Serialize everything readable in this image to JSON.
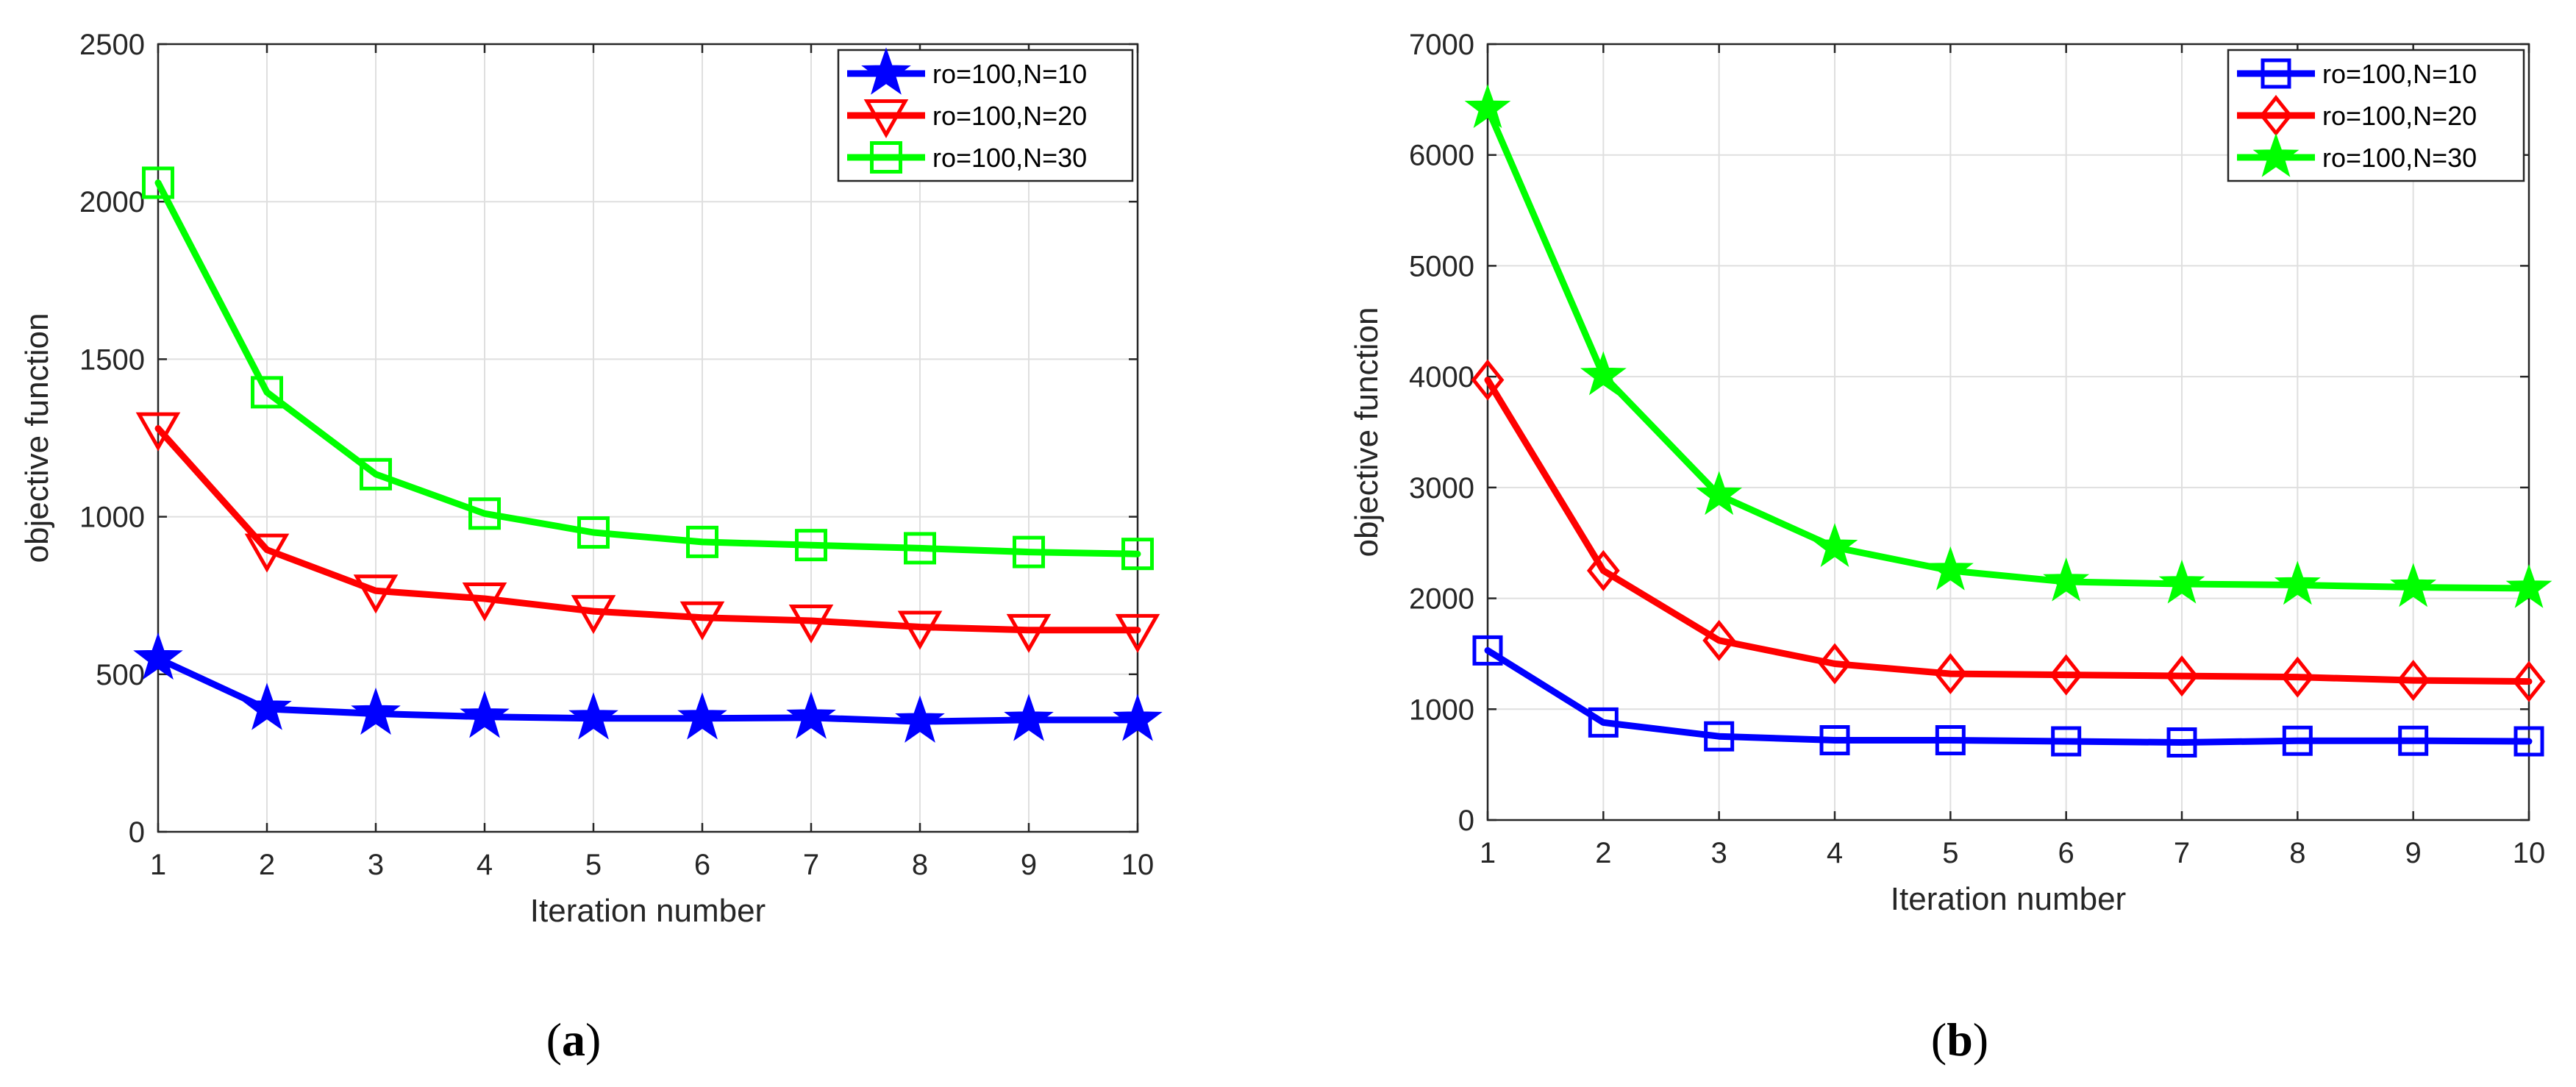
{
  "chart_data": [
    {
      "type": "line",
      "panel_label": "a",
      "title": "",
      "xlabel": "Iteration number",
      "ylabel": "objective function",
      "xlim": [
        1,
        10
      ],
      "ylim": [
        0,
        2500
      ],
      "x": [
        1,
        2,
        3,
        4,
        5,
        6,
        7,
        8,
        9,
        10
      ],
      "xticks": [
        "1",
        "2",
        "3",
        "4",
        "5",
        "6",
        "7",
        "8",
        "9",
        "10"
      ],
      "yticks": [
        "0",
        "500",
        "1000",
        "1500",
        "2000",
        "2500"
      ],
      "grid": true,
      "legend_position": "top-right",
      "series": [
        {
          "name": "ro=100,N=10",
          "color": "#0000ff",
          "marker": "star",
          "values": [
            550,
            390,
            375,
            365,
            360,
            360,
            362,
            350,
            355,
            355
          ]
        },
        {
          "name": "ro=100,N=20",
          "color": "#ff0000",
          "marker": "triangle-down",
          "values": [
            1280,
            895,
            765,
            740,
            700,
            680,
            670,
            650,
            640,
            640
          ]
        },
        {
          "name": "ro=100,N=30",
          "color": "#00ff00",
          "marker": "square",
          "values": [
            2060,
            1395,
            1135,
            1010,
            950,
            920,
            910,
            900,
            888,
            882
          ]
        }
      ]
    },
    {
      "type": "line",
      "panel_label": "b",
      "title": "",
      "xlabel": "Iteration number",
      "ylabel": "objective function",
      "xlim": [
        1,
        10
      ],
      "ylim": [
        0,
        7000
      ],
      "x": [
        1,
        2,
        3,
        4,
        5,
        6,
        7,
        8,
        9,
        10
      ],
      "xticks": [
        "1",
        "2",
        "3",
        "4",
        "5",
        "6",
        "7",
        "8",
        "9",
        "10"
      ],
      "yticks": [
        "0",
        "1000",
        "2000",
        "3000",
        "4000",
        "5000",
        "6000",
        "7000"
      ],
      "grid": true,
      "legend_position": "top-right",
      "series": [
        {
          "name": "ro=100,N=10",
          "color": "#0000ff",
          "marker": "square",
          "values": [
            1530,
            880,
            755,
            720,
            720,
            710,
            700,
            715,
            715,
            710
          ]
        },
        {
          "name": "ro=100,N=20",
          "color": "#ff0000",
          "marker": "diamond",
          "values": [
            3970,
            2250,
            1620,
            1410,
            1320,
            1310,
            1300,
            1290,
            1260,
            1250
          ]
        },
        {
          "name": "ro=100,N=30",
          "color": "#00ff00",
          "marker": "star",
          "values": [
            6420,
            4010,
            2930,
            2460,
            2250,
            2150,
            2130,
            2120,
            2100,
            2090
          ]
        }
      ]
    }
  ]
}
